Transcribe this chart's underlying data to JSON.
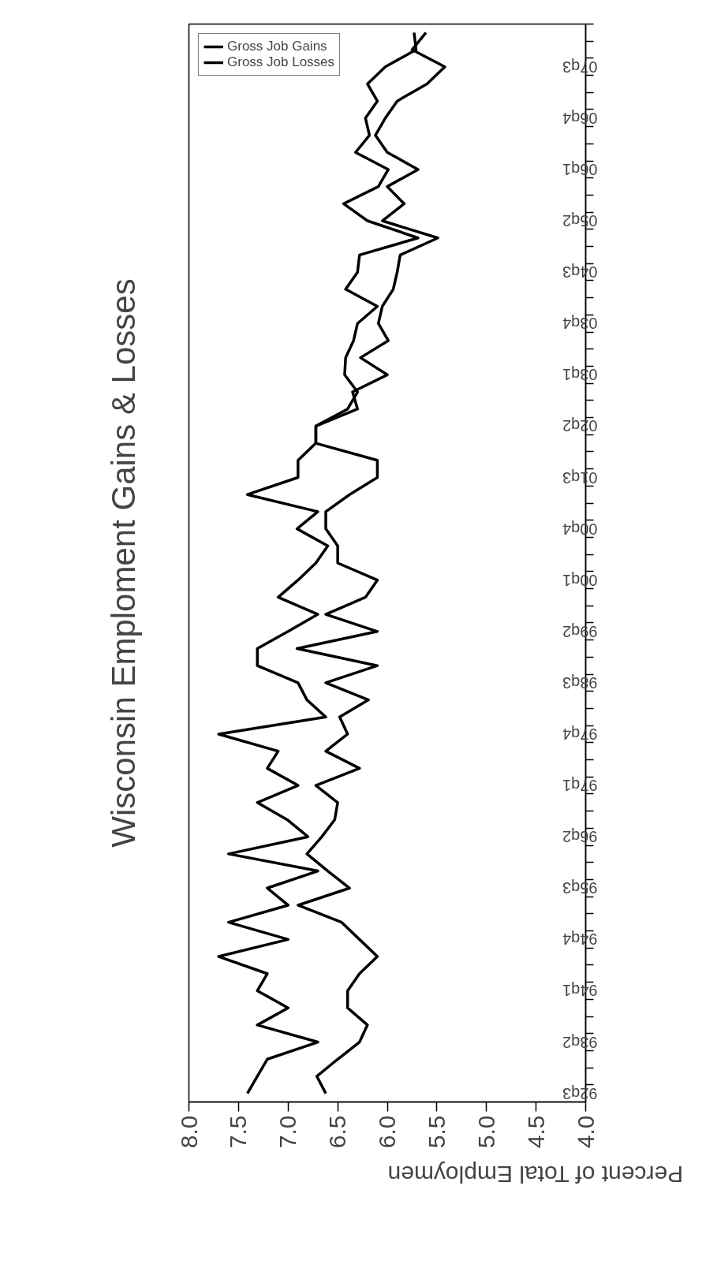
{
  "chart_data": {
    "type": "line",
    "orientation": "horizontal",
    "title": "Wisconsin Emploment Gains & Losses",
    "xlabel": "Percent of Total Employmen",
    "categories": [
      null,
      null,
      "07q3",
      null,
      null,
      "06q4",
      null,
      null,
      "06q1",
      null,
      null,
      "05q2",
      null,
      null,
      "04q3",
      null,
      null,
      "03q4",
      null,
      null,
      "03q1",
      null,
      null,
      "02q2",
      null,
      null,
      "01q3",
      null,
      null,
      "00q4",
      null,
      null,
      "00q1",
      null,
      null,
      "99q2",
      null,
      null,
      "98q3",
      null,
      null,
      "97q4",
      null,
      null,
      "97q1",
      null,
      null,
      "96q2",
      null,
      null,
      "95q3",
      null,
      null,
      "94q4",
      null,
      null,
      "94q1",
      null,
      null,
      "93q2",
      null,
      null,
      "92q3"
    ],
    "series": [
      {
        "name": "Gross Job Gains",
        "color": "#000000",
        "values": [
          5.73,
          5.71,
          6.02,
          6.2,
          6.1,
          6.22,
          6.18,
          6.32,
          5.99,
          6.09,
          6.44,
          6.2,
          5.69,
          6.28,
          6.3,
          6.42,
          6.1,
          6.3,
          6.34,
          6.42,
          6.43,
          6.3,
          6.4,
          6.72,
          6.72,
          6.9,
          6.9,
          7.41,
          6.7,
          6.91,
          6.6,
          6.72,
          6.9,
          7.1,
          6.7,
          7.0,
          7.31,
          7.31,
          6.9,
          6.81,
          6.62,
          7.7,
          7.1,
          7.21,
          6.9,
          7.31,
          7.01,
          6.8,
          7.6,
          6.7,
          7.21,
          7.0,
          7.6,
          7.0,
          7.7,
          7.21,
          7.31,
          7.0,
          7.31,
          6.7,
          7.21,
          7.31,
          7.41
        ]
      },
      {
        "name": "Gross Job Losses",
        "color": "#000000",
        "values": [
          5.61,
          5.75,
          5.42,
          5.6,
          5.9,
          6.02,
          6.12,
          6.0,
          5.69,
          6.0,
          5.83,
          6.05,
          5.49,
          5.87,
          5.9,
          5.94,
          6.05,
          6.09,
          5.99,
          6.27,
          6.0,
          6.35,
          6.3,
          6.72,
          6.72,
          6.1,
          6.1,
          6.38,
          6.62,
          6.62,
          6.5,
          6.5,
          6.1,
          6.22,
          6.62,
          6.1,
          6.91,
          6.1,
          6.62,
          6.19,
          6.48,
          6.4,
          6.62,
          6.28,
          6.72,
          6.5,
          6.53,
          6.66,
          6.81,
          6.6,
          6.38,
          6.9,
          6.46,
          6.28,
          6.1,
          6.28,
          6.4,
          6.4,
          6.2,
          6.28,
          6.5,
          6.71,
          6.62
        ]
      }
    ],
    "xlim": [
      8,
      4
    ],
    "xticks": [
      {
        "value": 4,
        "label": "4.0"
      },
      {
        "value": 4.5,
        "label": "4.5"
      },
      {
        "value": 5,
        "label": "5.0"
      },
      {
        "value": 5.5,
        "label": "5.5"
      },
      {
        "value": 6,
        "label": "6.0"
      },
      {
        "value": 6.5,
        "label": "6.5"
      },
      {
        "value": 7,
        "label": "7.0"
      },
      {
        "value": 7.5,
        "label": "7.5"
      },
      {
        "value": 8,
        "label": "8.0"
      }
    ],
    "grid": false,
    "legend": "top left",
    "line_style": "solid",
    "marker": "none"
  }
}
